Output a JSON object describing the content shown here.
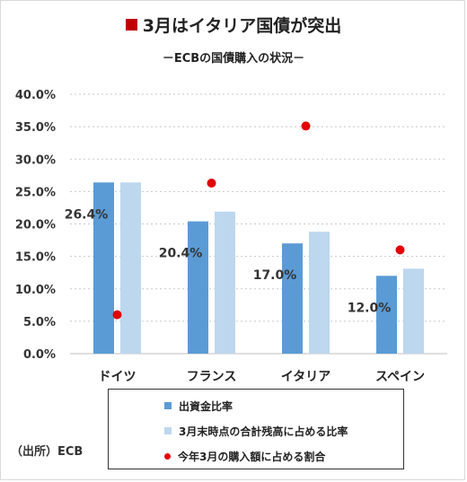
{
  "title": "3月はイタリア国債が突出",
  "subtitle": "－ECBの国債購入の状況－",
  "source": "（出所）ECB",
  "colors": {
    "capital_key": "#5b9bd5",
    "outstanding_share": "#bdd7ee",
    "march_share": "#e00000",
    "title_marker": "#c00000"
  },
  "chart_data": {
    "type": "bar",
    "categories": [
      "ドイツ",
      "フランス",
      "イタリア",
      "スペイン"
    ],
    "series": [
      {
        "name": "出資金比率",
        "kind": "bar",
        "values": [
          26.4,
          20.4,
          17.0,
          12.0
        ],
        "value_labels": [
          "26.4%",
          "20.4%",
          "17.0%",
          "12.0%"
        ]
      },
      {
        "name": "3月末時点の合計残高に占める比率",
        "kind": "bar",
        "values": [
          26.4,
          21.9,
          18.8,
          13.1
        ]
      },
      {
        "name": "今年3月の購入額に占める割合",
        "kind": "point",
        "values": [
          6.0,
          26.3,
          35.1,
          16.0
        ]
      }
    ],
    "yticks": [
      "0.0%",
      "5.0%",
      "10.0%",
      "15.0%",
      "20.0%",
      "25.0%",
      "30.0%",
      "35.0%",
      "40.0%"
    ],
    "ylim": [
      0,
      40
    ],
    "grid": true,
    "legend_position": "bottom"
  }
}
